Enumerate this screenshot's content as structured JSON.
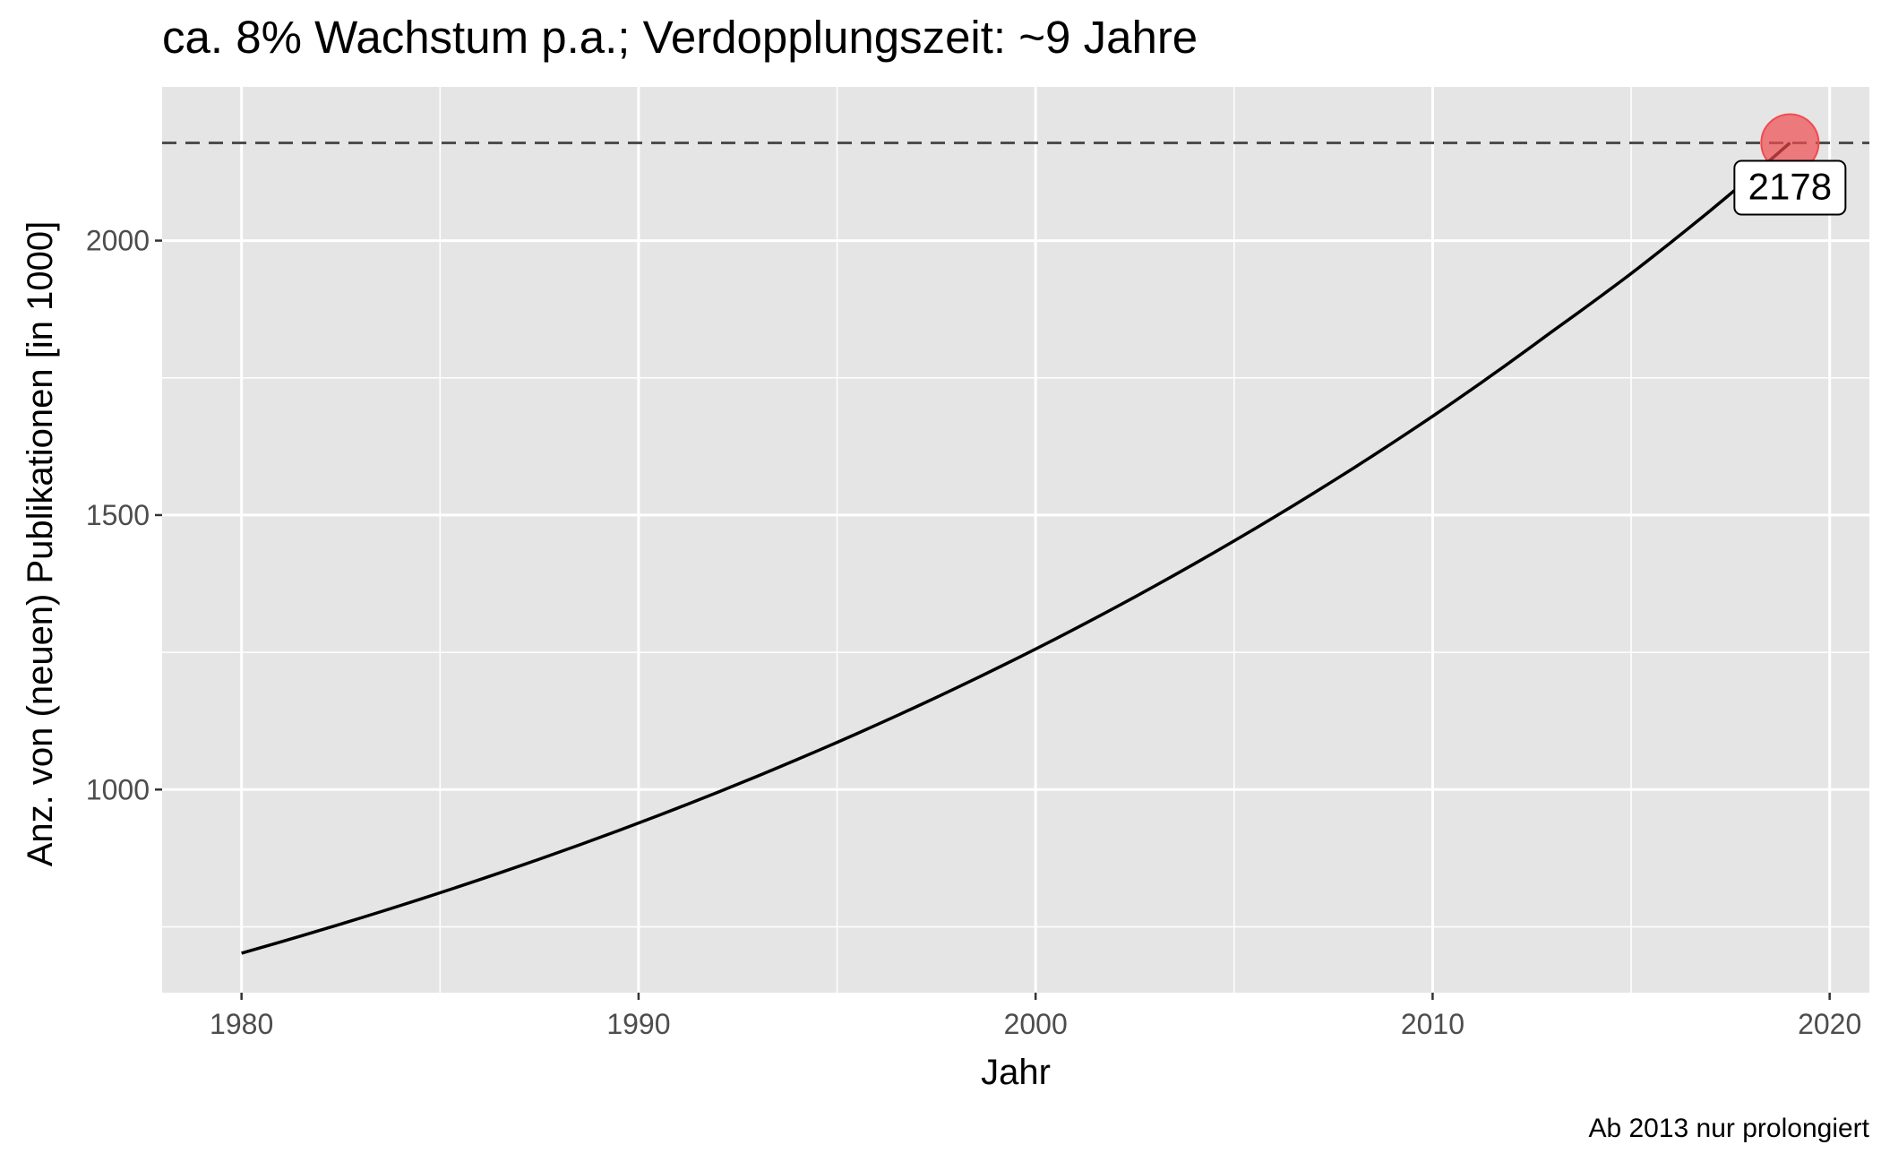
{
  "chart_data": {
    "type": "line",
    "title": "ca. 8% Wachstum p.a.; Verdopplungszeit: ~9 Jahre",
    "xlabel": "Jahr",
    "ylabel": "Anz. von (neuen) Publikationen [in 1000]",
    "caption": "Ab 2013 nur prolongiert",
    "xlim": [
      1978,
      2021
    ],
    "ylim": [
      630,
      2280
    ],
    "x_ticks": [
      1980,
      1990,
      2000,
      2010,
      2020
    ],
    "y_ticks": [
      1000,
      1500,
      2000
    ],
    "x_tick_labels": [
      "1980",
      "1990",
      "2000",
      "2010",
      "2020"
    ],
    "y_tick_labels": [
      "1000",
      "1500",
      "2000"
    ],
    "grid": true,
    "series": [
      {
        "x": [
          1980,
          1985,
          1990,
          1995,
          2000,
          2005,
          2010,
          2013,
          2015,
          2017,
          2019
        ],
        "values": [
          702,
          812,
          939,
          1086,
          1256,
          1453,
          1680,
          1834,
          1940,
          2055,
          2178
        ]
      }
    ],
    "reference_line": {
      "y": 2178,
      "style": "dashed"
    },
    "highlight_point": {
      "x": 2019,
      "y": 2178,
      "color": "#f04b50"
    },
    "data_label": "2178",
    "colors": {
      "panel": "#e5e5e5",
      "grid": "#ffffff",
      "line": "#000000",
      "reference": "#4d4d4d"
    }
  }
}
